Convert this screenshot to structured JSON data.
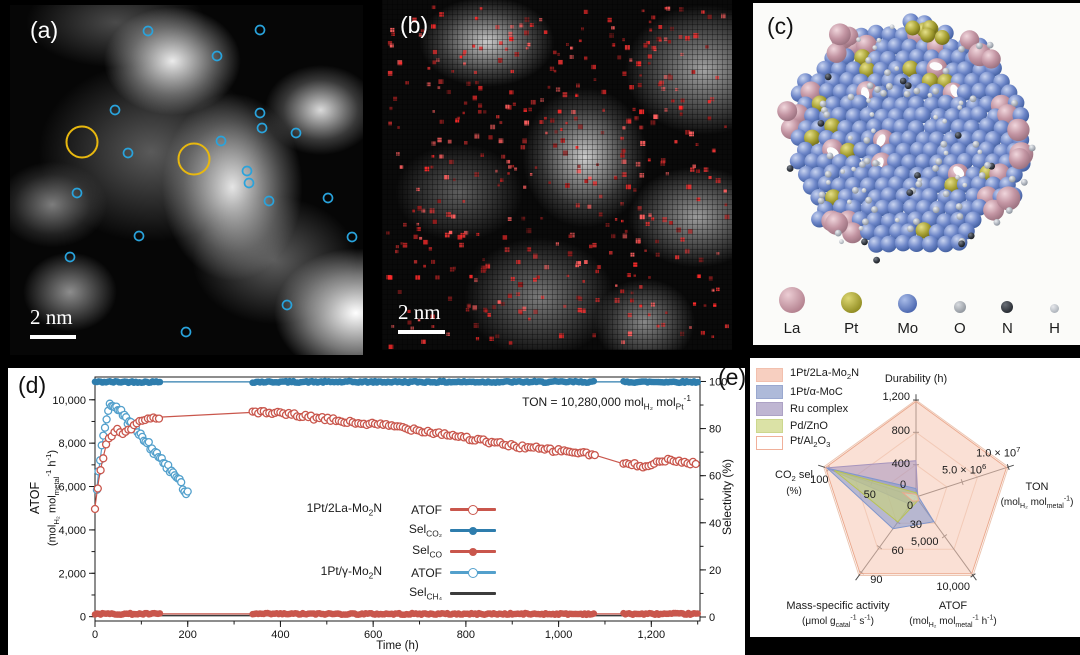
{
  "figure": {
    "panels": {
      "a": {
        "label": "(a)",
        "scale_bar": "2 nm",
        "marker_color": "#29a3dc",
        "highlight_color": "#e8b80f",
        "blue_circles": [
          [
            138,
            26
          ],
          [
            250,
            25
          ],
          [
            207,
            51
          ],
          [
            105,
            105
          ],
          [
            250,
            108
          ],
          [
            252,
            123
          ],
          [
            286,
            128
          ],
          [
            211,
            136
          ],
          [
            118,
            148
          ],
          [
            237,
            166
          ],
          [
            239,
            178
          ],
          [
            259,
            196
          ],
          [
            318,
            193
          ],
          [
            67,
            188
          ],
          [
            129,
            231
          ],
          [
            342,
            232
          ],
          [
            60,
            252
          ],
          [
            277,
            300
          ],
          [
            176,
            327
          ]
        ],
        "yellow_circles": [
          [
            72,
            137
          ],
          [
            184,
            154
          ]
        ]
      },
      "b": {
        "label": "(b)",
        "scale_bar": "2 nm",
        "dot_count": 430,
        "dot_colors": [
          "#ff2b2b",
          "#e23232",
          "#b22222",
          "#ff6060",
          "#901d1d"
        ]
      },
      "c": {
        "label": "(c)",
        "legend": [
          {
            "element": "La",
            "color1": "#eccdd4",
            "color2": "#b27f8d",
            "size": 26
          },
          {
            "element": "Pt",
            "color1": "#ddd772",
            "color2": "#8f8a20",
            "size": 21
          },
          {
            "element": "Mo",
            "color1": "#aabde9",
            "color2": "#4763ad",
            "size": 19
          },
          {
            "element": "O",
            "color1": "#d8dbe0",
            "color2": "#8e949c",
            "size": 12
          },
          {
            "element": "N",
            "color1": "#6a6f77",
            "color2": "#23272e",
            "size": 12
          },
          {
            "element": "H",
            "color1": "#e6e8ec",
            "color2": "#aab0b8",
            "size": 9
          }
        ]
      },
      "d": {
        "label": "(d)"
      },
      "e": {
        "label": "(e)"
      }
    }
  },
  "chart_data": [
    {
      "type": "line",
      "panel": "d",
      "xlabel": "Time (h)",
      "ylabel_left_1": "ATOF",
      "ylabel_left_2": "(mol_{H₂} mol_{metal}^{-1} h^{-1})",
      "ylabel_right": "Selectivity (%)",
      "annotation": "TON = 10,280,000 mol_{H₂} mol_{Pt}^{-1}",
      "xlim": [
        0,
        1305
      ],
      "ylim_left": [
        -200,
        11050
      ],
      "ylim_right": [
        -1.7,
        101.9
      ],
      "x_minor_step": 100,
      "y_left_minor_step": 1000,
      "y_right_minor_step": 10,
      "x_ticks": [
        {
          "v": 0,
          "label": "0"
        },
        {
          "v": 200,
          "label": "200"
        },
        {
          "v": 400,
          "label": "400"
        },
        {
          "v": 600,
          "label": "600"
        },
        {
          "v": 800,
          "label": "800"
        },
        {
          "v": 1000,
          "label": "1,000"
        },
        {
          "v": 1200,
          "label": "1,200"
        }
      ],
      "y_left_ticks": [
        {
          "v": 0,
          "label": "0"
        },
        {
          "v": 2000,
          "label": "2,000"
        },
        {
          "v": 4000,
          "label": "4,000"
        },
        {
          "v": 6000,
          "label": "6,000"
        },
        {
          "v": 8000,
          "label": "8,000"
        },
        {
          "v": 10000,
          "label": "10,000"
        }
      ],
      "y_right_ticks": [
        {
          "v": 0,
          "label": "0"
        },
        {
          "v": 20,
          "label": "20"
        },
        {
          "v": 40,
          "label": "40"
        },
        {
          "v": 60,
          "label": "60"
        },
        {
          "v": 80,
          "label": "80"
        },
        {
          "v": 100,
          "label": "100"
        }
      ],
      "series": [
        {
          "name": "Sel CH4 1Pt/γ-Mo₂N",
          "axis": "right",
          "color": "#3c3c3c",
          "marker": "none",
          "points": [
            [
              0,
              0.6
            ],
            [
              1300,
              0.6
            ]
          ]
        },
        {
          "name": "Sel CO2 1Pt/2La-Mo₂N",
          "axis": "right",
          "color": "#2e7dad",
          "marker": "filled",
          "marker_step": 4,
          "jitter": 0.7,
          "marker_ranges": [
            [
              0,
              140
            ],
            [
              340,
              1078
            ],
            [
              1140,
              1300
            ]
          ],
          "points": [
            [
              0,
              99.8
            ],
            [
              1300,
              99.8
            ]
          ]
        },
        {
          "name": "Sel CO 1Pt/2La-Mo₂N",
          "axis": "right",
          "color": "#c9564c",
          "marker": "filled",
          "marker_step": 4,
          "jitter": 0.7,
          "marker_ranges": [
            [
              0,
              140
            ],
            [
              340,
              1078
            ],
            [
              1140,
              1300
            ]
          ],
          "points": [
            [
              0,
              1.3
            ],
            [
              1300,
              1.3
            ]
          ]
        },
        {
          "name": "ATOF 1Pt/γ-Mo₂N",
          "axis": "left",
          "color": "#53a0cc",
          "marker": "open",
          "marker_step": 3.5,
          "jitter": 300,
          "marker_ranges": [
            [
              4,
              200
            ]
          ],
          "points": [
            [
              4,
              5900
            ],
            [
              8,
              6700
            ],
            [
              12,
              7400
            ],
            [
              16,
              8000
            ],
            [
              20,
              8600
            ],
            [
              24,
              9100
            ],
            [
              28,
              9500
            ],
            [
              32,
              9750
            ],
            [
              36,
              9850
            ],
            [
              40,
              9800
            ],
            [
              46,
              9650
            ],
            [
              52,
              9500
            ],
            [
              60,
              9300
            ],
            [
              68,
              9100
            ],
            [
              76,
              8900
            ],
            [
              84,
              8700
            ],
            [
              92,
              8500
            ],
            [
              100,
              8300
            ],
            [
              110,
              8050
            ],
            [
              120,
              7800
            ],
            [
              130,
              7550
            ],
            [
              140,
              7300
            ],
            [
              150,
              7050
            ],
            [
              160,
              6800
            ],
            [
              170,
              6550
            ],
            [
              180,
              6300
            ],
            [
              190,
              6000
            ],
            [
              200,
              5650
            ]
          ]
        },
        {
          "name": "ATOF 1Pt/2La-Mo₂N",
          "axis": "left",
          "color": "#c9564c",
          "marker": "open",
          "marker_step": 6,
          "jitter": 170,
          "marker_ranges": [
            [
              0,
              140
            ],
            [
              340,
              1078
            ],
            [
              1140,
              1300
            ]
          ],
          "points": [
            [
              0,
              5050
            ],
            [
              8,
              6300
            ],
            [
              16,
              7200
            ],
            [
              24,
              7900
            ],
            [
              32,
              8300
            ],
            [
              40,
              8500
            ],
            [
              48,
              8600
            ],
            [
              56,
              8500
            ],
            [
              64,
              8450
            ],
            [
              72,
              8600
            ],
            [
              80,
              8750
            ],
            [
              90,
              8900
            ],
            [
              100,
              9000
            ],
            [
              110,
              9100
            ],
            [
              120,
              9150
            ],
            [
              130,
              9180
            ],
            [
              140,
              9200
            ],
            [
              340,
              9420
            ],
            [
              360,
              9400
            ],
            [
              380,
              9380
            ],
            [
              400,
              9350
            ],
            [
              430,
              9300
            ],
            [
              460,
              9200
            ],
            [
              490,
              9120
            ],
            [
              520,
              9050
            ],
            [
              550,
              8950
            ],
            [
              580,
              8900
            ],
            [
              610,
              8850
            ],
            [
              640,
              8800
            ],
            [
              670,
              8700
            ],
            [
              700,
              8600
            ],
            [
              730,
              8500
            ],
            [
              760,
              8400
            ],
            [
              790,
              8300
            ],
            [
              820,
              8150
            ],
            [
              850,
              8050
            ],
            [
              880,
              7950
            ],
            [
              910,
              7850
            ],
            [
              940,
              7800
            ],
            [
              970,
              7700
            ],
            [
              1000,
              7650
            ],
            [
              1030,
              7600
            ],
            [
              1060,
              7500
            ],
            [
              1078,
              7450
            ],
            [
              1140,
              7050
            ],
            [
              1160,
              7000
            ],
            [
              1180,
              6950
            ],
            [
              1200,
              7050
            ],
            [
              1220,
              7150
            ],
            [
              1240,
              7200
            ],
            [
              1260,
              7150
            ],
            [
              1280,
              7100
            ],
            [
              1300,
              7050
            ]
          ]
        }
      ],
      "legend": [
        {
          "group": "1Pt/2La-Mo_{2}N",
          "label": "ATOF",
          "marker": "open",
          "color": "#c9564c"
        },
        {
          "group": "",
          "label": "Sel_{CO₂}",
          "marker": "filled",
          "color": "#2e7dad"
        },
        {
          "group": "",
          "label": "Sel_{CO}",
          "marker": "filled",
          "color": "#c9564c"
        },
        {
          "group": "1Pt/γ-Mo_{2}N",
          "label": "ATOF",
          "marker": "open",
          "color": "#53a0cc"
        },
        {
          "group": "",
          "label": "Sel_{CH₄}",
          "marker": "line",
          "color": "#3c3c3c"
        }
      ]
    },
    {
      "type": "radar",
      "panel": "e",
      "axes": [
        {
          "label": "Durability (h)",
          "label2": "",
          "max": 1255,
          "ticks": [
            {
              "f": 0.3333,
              "label": "400"
            },
            {
              "f": 0.6667,
              "label": "800"
            },
            {
              "f": 1,
              "label": "1,200"
            }
          ]
        },
        {
          "label": "TON",
          "label2": "(mol_{H₂} mol_{metal}^{-1})",
          "max": 10500000,
          "ticks": [
            {
              "f": 0.5,
              "label": "5.0 × 10^{6}"
            },
            {
              "f": 1,
              "label": "1.0 × 10^{7}"
            }
          ]
        },
        {
          "label": "ATOF",
          "label2": "(mol_{H₂} mol_{metal}^{-1} h^{-1})",
          "max": 10500,
          "ticks": [
            {
              "f": 0.5,
              "label": "5,000"
            },
            {
              "f": 1,
              "label": "10,000"
            }
          ]
        },
        {
          "label": "Mass-specific activity",
          "label2": "(μmol g_{catal}^{-1} s^{-1})",
          "max": 94,
          "ticks": [
            {
              "f": 0.32,
              "label": "30"
            },
            {
              "f": 0.64,
              "label": "60"
            },
            {
              "f": 0.96,
              "label": "90"
            }
          ]
        },
        {
          "label": "CO_{2} sel",
          "label2": "(%)",
          "max": 105,
          "ticks": [
            {
              "f": 0.48,
              "label": "50"
            },
            {
              "f": 0.95,
              "label": "100"
            }
          ]
        }
      ],
      "center_zeros": [
        "0",
        "0"
      ],
      "series": [
        {
          "name": "1Pt/2La-Mo_{2}N",
          "fill": "rgba(247,204,185,0.60)",
          "stroke": "#eba98e",
          "values": [
            1235,
            10300000,
            10280,
            92,
            103
          ]
        },
        {
          "name": "Ru complex",
          "fill": "rgba(166,148,190,0.55)",
          "stroke": "#a795bd",
          "values": [
            470,
            200000,
            350,
            9,
            102
          ]
        },
        {
          "name": "1Pt/α-MoC",
          "fill": "rgba(128,150,204,0.55)",
          "stroke": "#8096cc",
          "values": [
            110,
            250000,
            3300,
            38,
            101
          ]
        },
        {
          "name": "Pd/ZnO",
          "fill": "rgba(201,211,118,0.60)",
          "stroke": "#b8c255",
          "values": [
            55,
            120000,
            420,
            30,
            93
          ]
        },
        {
          "name": "Pt/Al_{2}O_{3}",
          "fill": "rgba(255,255,255,0.30)",
          "stroke": "#eba98e",
          "values": [
            35,
            150000,
            500,
            5,
            15
          ]
        }
      ],
      "legend": [
        {
          "label": "1Pt/2La-Mo_{2}N",
          "swatch": "#f7cfc0",
          "border": "#f2c0ae"
        },
        {
          "label": "1Pt/α-MoC",
          "swatch": "#aebad9",
          "border": "#9aa8cf"
        },
        {
          "label": "Ru complex",
          "swatch": "#bfb6d2",
          "border": "#ada2c5"
        },
        {
          "label": "Pd/ZnO",
          "swatch": "#dbe2a6",
          "border": "#ccd78e"
        },
        {
          "label": "Pt/Al_{2}O_{3}",
          "swatch": "#ffffff",
          "border": "#f0b09a"
        }
      ]
    }
  ]
}
